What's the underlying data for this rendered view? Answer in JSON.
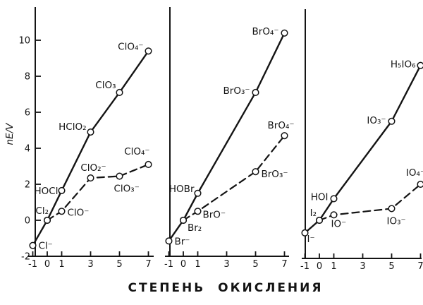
{
  "figure": {
    "y_axis_label": "nE/V",
    "x_axis_caption": "СТЕПЕНЬ ОКИСЛЕНИЯ"
  },
  "chart_data": {
    "type": "line",
    "title": "",
    "xlabel": "СТЕПЕНЬ ОКИСЛЕНИЯ",
    "ylabel": "nE/V",
    "x_ticks": [
      -1,
      0,
      1,
      3,
      5,
      7
    ],
    "y_ticks": [
      -2,
      0,
      2,
      4,
      6,
      8,
      10
    ],
    "xlim": [
      -1.5,
      7.5
    ],
    "ylim": [
      -2.5,
      11.8
    ],
    "grid": false,
    "legend_position": "none",
    "marker": "open-circle",
    "panels": [
      {
        "id": "chlorine",
        "show_y_tick_labels": true,
        "series": [
          {
            "name": "solid",
            "style": "solid",
            "points": [
              {
                "x": -1,
                "y": -1.4,
                "label": "Cl⁻",
                "anchor": "start",
                "dx": 8,
                "dy": 5
              },
              {
                "x": 0,
                "y": 0,
                "label": "Cl₂",
                "anchor": "end",
                "dx": 2,
                "dy": -9
              },
              {
                "x": 1,
                "y": 1.65,
                "label": "HOCl",
                "anchor": "end",
                "dx": -5,
                "dy": 5
              },
              {
                "x": 3,
                "y": 4.9,
                "label": "HClO₂",
                "anchor": "end",
                "dx": -6,
                "dy": -3
              },
              {
                "x": 5,
                "y": 7.1,
                "label": "ClO₃",
                "anchor": "end",
                "dx": -5,
                "dy": -6
              },
              {
                "x": 7,
                "y": 9.4,
                "label": "ClO₄⁻",
                "anchor": "end",
                "dx": -7,
                "dy": -2
              }
            ]
          },
          {
            "name": "dashed",
            "style": "dashed",
            "points": [
              {
                "x": 0,
                "y": 0,
                "label": ""
              },
              {
                "x": 1,
                "y": 0.5,
                "label": "ClO⁻",
                "anchor": "start",
                "dx": 8,
                "dy": 6
              },
              {
                "x": 3,
                "y": 2.35,
                "label": "ClO₂⁻",
                "anchor": "middle",
                "dx": 4,
                "dy": -10
              },
              {
                "x": 5,
                "y": 2.45,
                "label": "ClO₃⁻",
                "anchor": "start",
                "dx": -8,
                "dy": 22
              },
              {
                "x": 7,
                "y": 3.1,
                "label": "ClO₄⁻",
                "anchor": "end",
                "dx": 2,
                "dy": -14
              }
            ]
          }
        ]
      },
      {
        "id": "bromine",
        "show_y_tick_labels": false,
        "series": [
          {
            "name": "solid",
            "style": "solid",
            "points": [
              {
                "x": -1,
                "y": -1.15,
                "label": "Br⁻",
                "anchor": "start",
                "dx": 8,
                "dy": 5
              },
              {
                "x": 0,
                "y": 0,
                "label": "Br₂",
                "anchor": "start",
                "dx": 6,
                "dy": 15
              },
              {
                "x": 1,
                "y": 1.5,
                "label": "HOBr",
                "anchor": "end",
                "dx": -5,
                "dy": -2
              },
              {
                "x": 5,
                "y": 7.1,
                "label": "BrO₃⁻",
                "anchor": "end",
                "dx": -8,
                "dy": 2
              },
              {
                "x": 7,
                "y": 10.4,
                "label": "BrO₄⁻",
                "anchor": "end",
                "dx": -8,
                "dy": 2
              }
            ]
          },
          {
            "name": "dashed",
            "style": "dashed",
            "points": [
              {
                "x": 0,
                "y": 0,
                "label": ""
              },
              {
                "x": 1,
                "y": 0.5,
                "label": "BrO⁻",
                "anchor": "start",
                "dx": 7,
                "dy": 9
              },
              {
                "x": 5,
                "y": 2.7,
                "label": "BrO₃⁻",
                "anchor": "start",
                "dx": 8,
                "dy": 8
              },
              {
                "x": 7,
                "y": 4.7,
                "label": "BrO₄⁻",
                "anchor": "end",
                "dx": 14,
                "dy": -10
              }
            ]
          }
        ]
      },
      {
        "id": "iodine",
        "show_y_tick_labels": false,
        "series": [
          {
            "name": "solid",
            "style": "solid",
            "points": [
              {
                "x": -1,
                "y": -0.7,
                "label": "I⁻",
                "anchor": "start",
                "dx": 3,
                "dy": 13
              },
              {
                "x": 0,
                "y": 0,
                "label": "I₂",
                "anchor": "end",
                "dx": -4,
                "dy": -6
              },
              {
                "x": 1,
                "y": 1.2,
                "label": "HOI",
                "anchor": "end",
                "dx": -8,
                "dy": 2
              },
              {
                "x": 5,
                "y": 5.5,
                "label": "IO₃⁻",
                "anchor": "end",
                "dx": -8,
                "dy": 3
              },
              {
                "x": 7,
                "y": 8.6,
                "label": "H₅IO₆",
                "anchor": "end",
                "dx": -7,
                "dy": 3
              }
            ]
          },
          {
            "name": "dashed",
            "style": "dashed",
            "points": [
              {
                "x": 0,
                "y": 0,
                "label": ""
              },
              {
                "x": 1,
                "y": 0.3,
                "label": "IO⁻",
                "anchor": "start",
                "dx": -4,
                "dy": 17
              },
              {
                "x": 5,
                "y": 0.65,
                "label": "IO₃⁻",
                "anchor": "start",
                "dx": -7,
                "dy": 22
              },
              {
                "x": 7,
                "y": 2.0,
                "label": "IO₄⁻",
                "anchor": "middle",
                "dx": -7,
                "dy": -12
              }
            ]
          }
        ]
      }
    ]
  }
}
